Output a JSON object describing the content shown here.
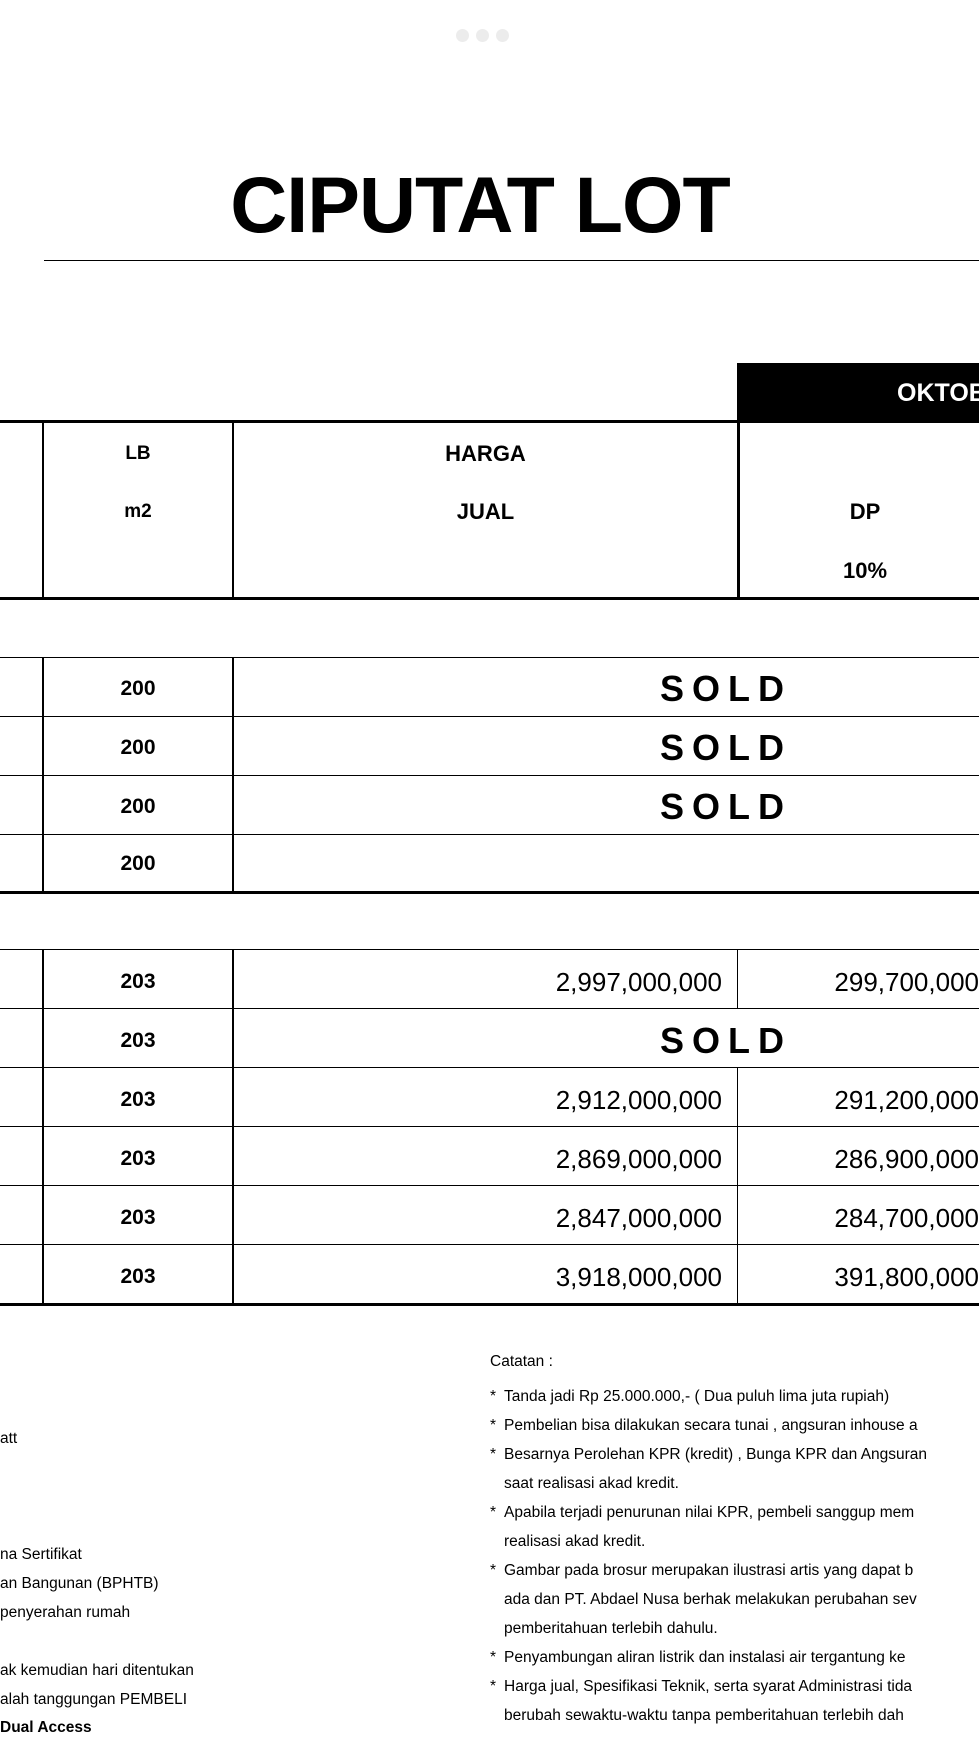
{
  "title": "CIPUTAT LOT",
  "month_banner": "OKTOB",
  "headers": {
    "lb_line1": "LB",
    "lb_line2": "m2",
    "price_line1": "HARGA",
    "price_line2": "JUAL",
    "dp_line1": "DP",
    "dp_line2": "10%"
  },
  "group1": [
    {
      "lb": "200",
      "price": "",
      "dp": "",
      "status": "SOLD"
    },
    {
      "lb": "200",
      "price": "",
      "dp": "",
      "status": "SOLD"
    },
    {
      "lb": "200",
      "price": "",
      "dp": "",
      "status": "SOLD"
    },
    {
      "lb": "200",
      "price": "",
      "dp": "",
      "status": ""
    }
  ],
  "group2": [
    {
      "lb": "203",
      "price": "2,997,000,000",
      "dp": "299,700,000",
      "status": ""
    },
    {
      "lb": "203",
      "price": "",
      "dp": "",
      "status": "SOLD"
    },
    {
      "lb": "203",
      "price": "2,912,000,000",
      "dp": "291,200,000",
      "status": ""
    },
    {
      "lb": "203",
      "price": "2,869,000,000",
      "dp": "286,900,000",
      "status": ""
    },
    {
      "lb": "203",
      "price": "2,847,000,000",
      "dp": "284,700,000",
      "status": ""
    },
    {
      "lb": "203",
      "price": "3,918,000,000",
      "dp": "391,800,000",
      "status": ""
    }
  ],
  "notes": {
    "heading": "Catatan :",
    "lines": [
      {
        "star": "*",
        "text": "Tanda jadi Rp 25.000.000,- ( Dua puluh lima juta rupiah)"
      },
      {
        "star": "*",
        "text": "Pembelian bisa dilakukan secara tunai , angsuran inhouse a"
      },
      {
        "star": "*",
        "text": "Besarnya Perolehan KPR (kredit) , Bunga KPR dan Angsuran"
      },
      {
        "star": "",
        "text": "saat realisasi akad kredit."
      },
      {
        "star": "*",
        "text": "Apabila terjadi penurunan nilai KPR, pembeli sanggup mem"
      },
      {
        "star": "",
        "text": "realisasi akad kredit."
      },
      {
        "star": "*",
        "text": "Gambar pada brosur merupakan ilustrasi artis yang dapat b"
      },
      {
        "star": "",
        "text": "ada dan PT. Abdael Nusa berhak melakukan perubahan sev"
      },
      {
        "star": "",
        "text": "pemberitahuan terlebih dahulu."
      },
      {
        "star": "*",
        "text": "Penyambungan aliran listrik dan instalasi air tergantung ke"
      },
      {
        "star": "*",
        "text": "Harga jual, Spesifikasi Teknik, serta syarat Administrasi tida"
      },
      {
        "star": "",
        "text": "berubah sewaktu-waktu tanpa pemberitahuan terlebih dah"
      }
    ]
  },
  "left_notes": [
    "att",
    "na Sertifikat",
    "an Bangunan (BPHTB)",
    "penyerahan rumah",
    "ak kemudian hari ditentukan",
    "alah tanggungan PEMBELI",
    "Dual Access"
  ]
}
